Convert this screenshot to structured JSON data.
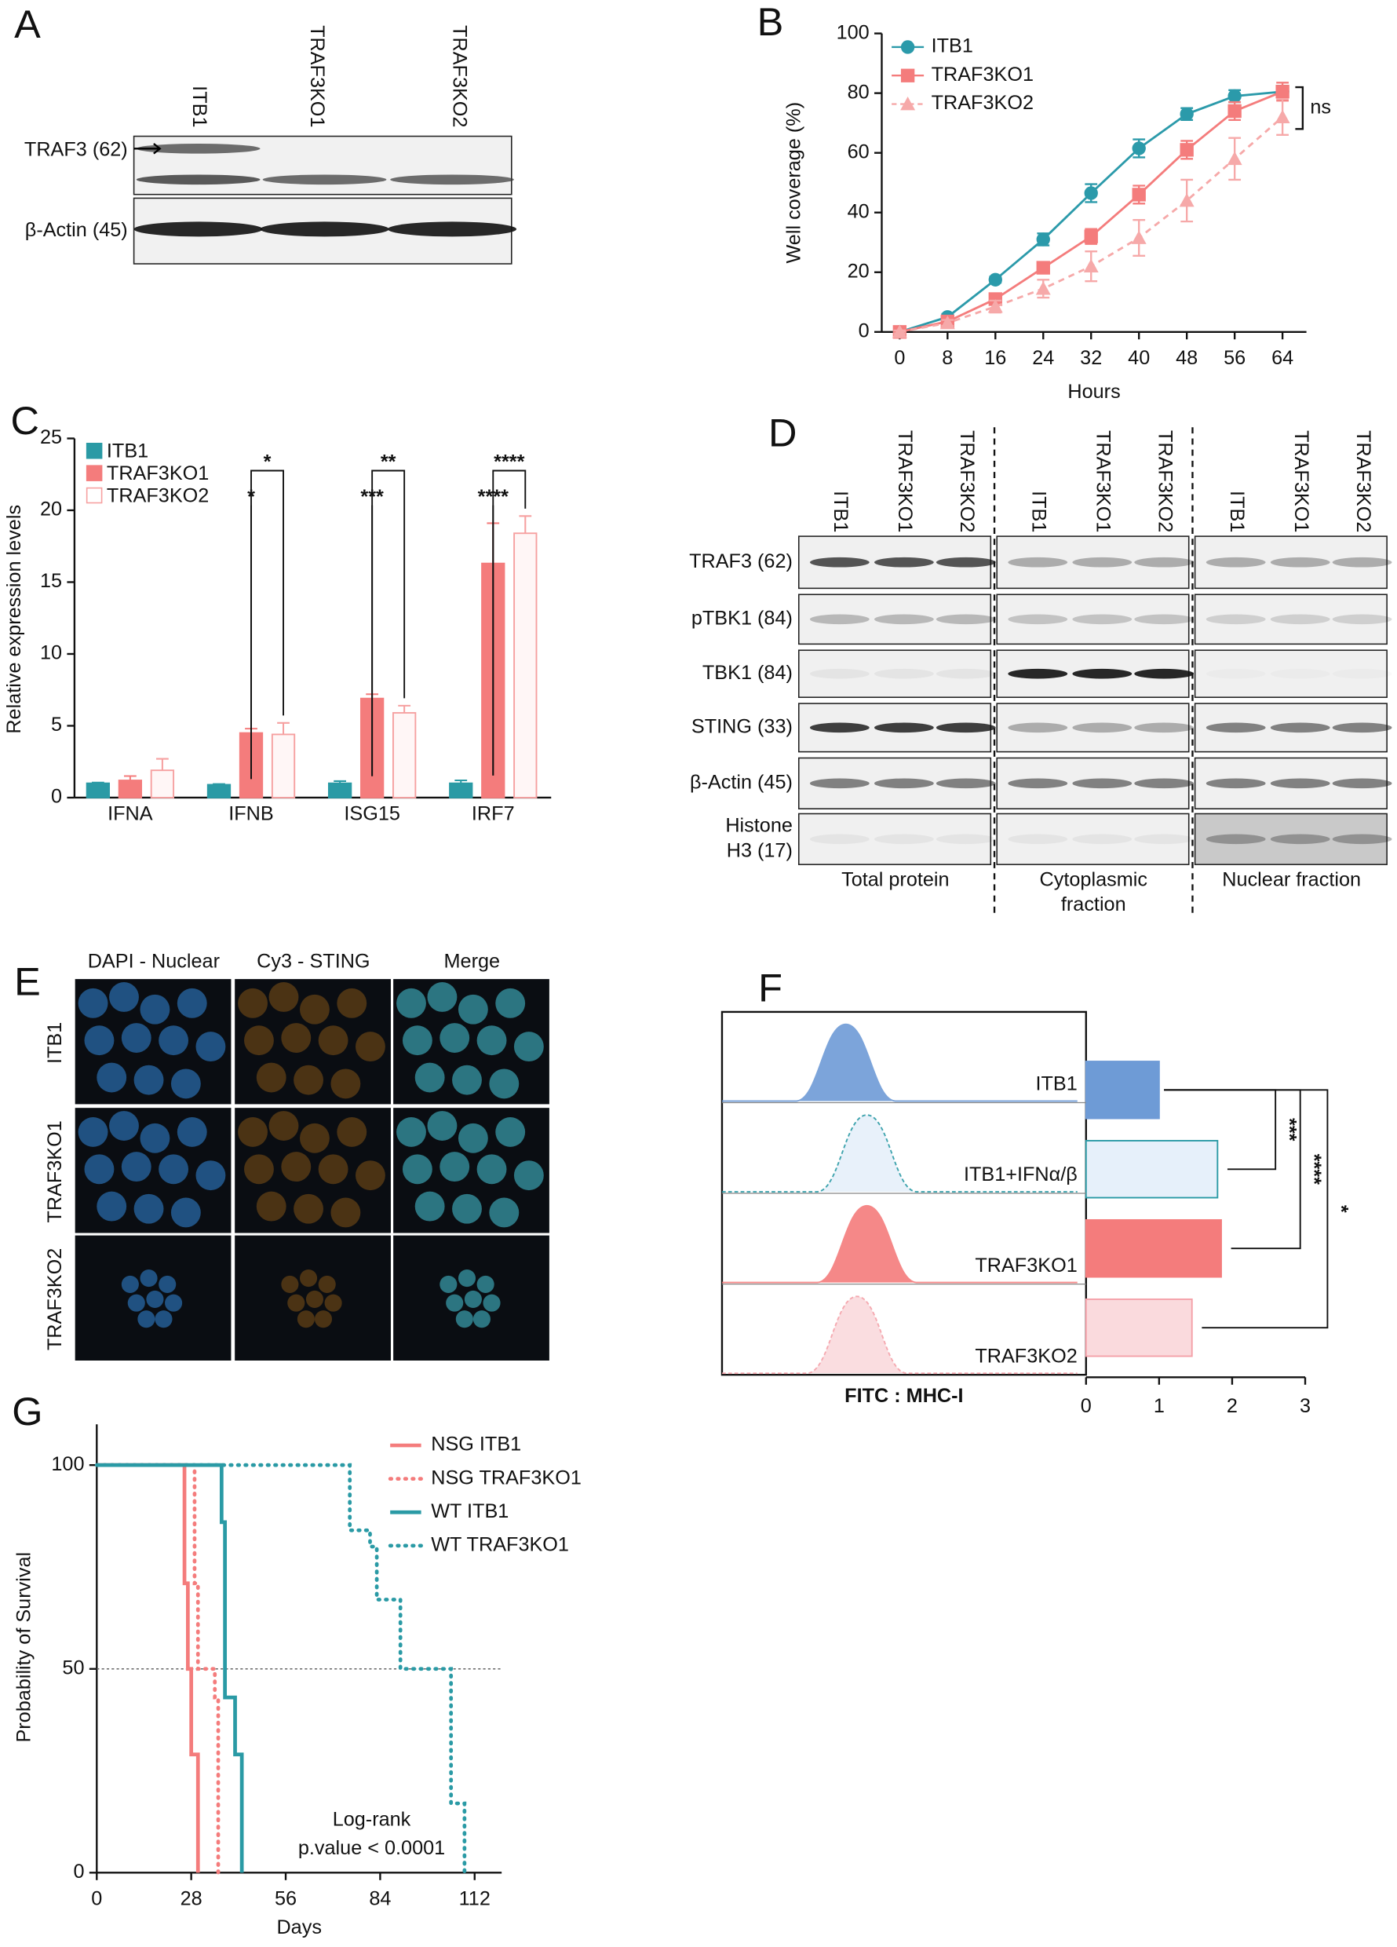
{
  "panel_a": {
    "letter": "A",
    "lanes": [
      "ITB1",
      "TRAF3KO1",
      "TRAF3KO2"
    ],
    "rows": [
      "TRAF3 (62)",
      "β-Actin (45)"
    ]
  },
  "panel_d": {
    "letter": "D",
    "groups": [
      {
        "lanes": [
          "ITB1",
          "TRAF3KO1",
          "TRAF3KO2"
        ],
        "fraction": [
          "Total protein"
        ]
      },
      {
        "lanes": [
          "ITB1",
          "TRAF3KO1",
          "TRAF3KO2"
        ],
        "fraction": [
          "Cytoplasmic",
          "fraction"
        ]
      },
      {
        "lanes": [
          "ITB1",
          "TRAF3KO1",
          "TRAF3KO2"
        ],
        "fraction": [
          "Nuclear fraction"
        ]
      }
    ],
    "rows": [
      [
        "TRAF3 (62)"
      ],
      [
        "pTBK1 (84)"
      ],
      [
        "TBK1 (84)"
      ],
      [
        "STING (33)"
      ],
      [
        "β-Actin (45)"
      ],
      [
        "Histone",
        "H3 (17)"
      ]
    ]
  },
  "panel_e": {
    "letter": "E",
    "columns": [
      "DAPI - Nuclear",
      "Cy3 - STING",
      "Merge"
    ],
    "rows": [
      "ITB1",
      "TRAF3KO1",
      "TRAF3KO2"
    ]
  },
  "chart_data": [
    {
      "type": "line",
      "panel": "B",
      "x_label": "Hours",
      "y_label": "Well coverage (%)",
      "x": [
        0,
        8,
        16,
        24,
        32,
        40,
        48,
        56,
        64
      ],
      "xlim": [
        -3,
        68
      ],
      "xticks": [
        0,
        8,
        16,
        24,
        32,
        40,
        48,
        56,
        64
      ],
      "ylim": [
        0,
        100
      ],
      "yticks": [
        0,
        20,
        40,
        60,
        80,
        100
      ],
      "legend": "upper-left",
      "annotation": "ns",
      "series": [
        {
          "name": "ITB1",
          "color": "#2b9aaa",
          "marker": "circle",
          "dash": false,
          "values": [
            0,
            5,
            17.5,
            31,
            46.5,
            61.5,
            73,
            79,
            80.5
          ],
          "errors": [
            1,
            1,
            1,
            2,
            3,
            3,
            2,
            2,
            2
          ]
        },
        {
          "name": "TRAF3KO1",
          "color": "#f47c7c",
          "marker": "square",
          "dash": false,
          "values": [
            0,
            3.5,
            11,
            21.5,
            32,
            46,
            61,
            74,
            80.5
          ],
          "errors": [
            0.5,
            1,
            1.5,
            1.5,
            2.5,
            3,
            3,
            3,
            3
          ]
        },
        {
          "name": "TRAF3KO2",
          "color": "#f6a9a9",
          "marker": "triangle",
          "dash": true,
          "values": [
            0,
            3,
            8.5,
            14.5,
            22,
            31.5,
            44,
            58,
            72
          ],
          "errors": [
            0.5,
            1,
            2,
            3,
            5,
            6,
            7,
            7,
            6
          ]
        }
      ]
    },
    {
      "type": "grouped-bar",
      "panel": "C",
      "y_label": "Relative expression levels",
      "categories": [
        "IFNA",
        "IFNB",
        "ISG15",
        "IRF7"
      ],
      "ylim": [
        0,
        25
      ],
      "yticks": [
        0,
        5,
        10,
        15,
        20,
        25
      ],
      "legend": "upper-left",
      "series": [
        {
          "name": "ITB1",
          "color": "#2a9aa5",
          "hollow": false,
          "values": [
            1,
            0.9,
            1,
            1
          ],
          "errors": [
            0.05,
            0.05,
            0.15,
            0.2
          ]
        },
        {
          "name": "TRAF3KO1",
          "color": "#f47c7c",
          "hollow": false,
          "values": [
            1.2,
            4.5,
            6.9,
            16.3
          ],
          "errors": [
            0.3,
            0.3,
            0.3,
            2.8
          ]
        },
        {
          "name": "TRAF3KO2",
          "color": "#f6a0a0",
          "hollow": true,
          "values": [
            1.9,
            4.4,
            5.9,
            18.4
          ],
          "errors": [
            0.8,
            0.8,
            0.5,
            1.2
          ]
        }
      ],
      "annotations": [
        {
          "label": "*",
          "group": 1,
          "series": 2
        },
        {
          "label": "*",
          "group": 1,
          "series": 1
        },
        {
          "label": "**",
          "group": 2,
          "series": 2
        },
        {
          "label": "***",
          "group": 2,
          "series": 1
        },
        {
          "label": "****",
          "group": 3,
          "series": 2
        },
        {
          "label": "****",
          "group": 3,
          "series": 1
        }
      ]
    },
    {
      "type": "hbar",
      "panel": "F",
      "x_label": "FITC : MHC-I",
      "categories": [
        "ITB1",
        "ITB1+IFNα/β",
        "TRAF3KO1",
        "TRAF3KO2"
      ],
      "values": [
        1.0,
        1.8,
        1.85,
        1.45
      ],
      "colors": [
        "#6e9bd6",
        "#e6f0fa",
        "#f47c7c",
        "#fadadd"
      ],
      "edges": [
        "#6e9bd6",
        "#2a9aa5",
        "#f47c7c",
        "#f4a0a8"
      ],
      "xlim": [
        0,
        3
      ],
      "xticks": [
        0,
        1,
        2,
        3
      ],
      "annotations": [
        {
          "label": "***",
          "from": 0,
          "to": 1
        },
        {
          "label": "****",
          "from": 0,
          "to": 2
        },
        {
          "label": "*",
          "from": 0,
          "to": 3
        }
      ]
    },
    {
      "type": "survival",
      "panel": "G",
      "x_label": "Days",
      "y_label": "Probability of Survival",
      "xlim": [
        0,
        120
      ],
      "xticks": [
        0,
        28,
        56,
        84,
        112
      ],
      "ylim": [
        0,
        110
      ],
      "yticks": [
        0,
        50,
        100
      ],
      "reference_line": 50,
      "annotation": [
        "Log-rank",
        "p.value < 0.0001"
      ],
      "legend": "upper-right",
      "series": [
        {
          "name": "NSG ITB1",
          "color": "#f47c7c",
          "dash": false,
          "x": [
            0,
            26,
            27,
            28,
            30
          ],
          "values": [
            100,
            71,
            50,
            29,
            0
          ]
        },
        {
          "name": "NSG TRAF3KO1",
          "color": "#f47c7c",
          "dash": true,
          "x": [
            0,
            29,
            30,
            35,
            36
          ],
          "values": [
            100,
            71,
            50,
            43,
            0
          ]
        },
        {
          "name": "WT ITB1",
          "color": "#2a9aa5",
          "dash": false,
          "x": [
            0,
            37,
            38,
            41,
            43
          ],
          "values": [
            100,
            86,
            43,
            29,
            0
          ]
        },
        {
          "name": "WT TRAF3KO1",
          "color": "#2a9aa5",
          "dash": true,
          "x": [
            0,
            75,
            81,
            83,
            90,
            105,
            109
          ],
          "values": [
            100,
            84,
            80,
            67,
            50,
            17,
            0
          ]
        }
      ]
    }
  ]
}
